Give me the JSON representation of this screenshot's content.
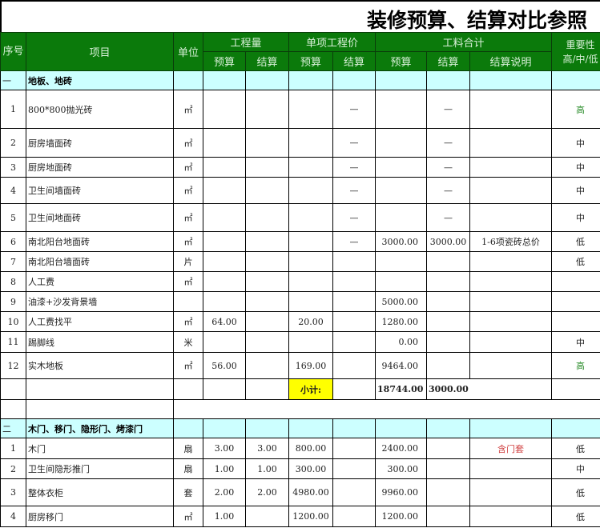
{
  "title": "装修预算、结算对比参照",
  "header": {
    "seq": "序号",
    "item": "项目",
    "unit": "单位",
    "qty": "工程量",
    "unit_price": "单项工程价",
    "total": "工料合计",
    "importance": "重要性",
    "importance_sub": "高/中/低",
    "budget": "预算",
    "settle": "结算",
    "settle_note": "结算说明"
  },
  "sections": [
    {
      "no": "一",
      "name": "地板、地砖",
      "rows": [
        {
          "no": "1",
          "item": "800*800抛光砖",
          "unit": "㎡",
          "qb": "",
          "qs": "",
          "pb": "",
          "ps": "—",
          "tb": "",
          "ts": "—",
          "note": "",
          "imp": "高"
        },
        {
          "no": "2",
          "item": "厨房墙面砖",
          "unit": "㎡",
          "qb": "",
          "qs": "",
          "pb": "",
          "ps": "—",
          "tb": "",
          "ts": "—",
          "note": "",
          "imp": "中"
        },
        {
          "no": "3",
          "item": "厨房地面砖",
          "unit": "㎡",
          "qb": "",
          "qs": "",
          "pb": "",
          "ps": "—",
          "tb": "",
          "ts": "—",
          "note": "",
          "imp": "中"
        },
        {
          "no": "4",
          "item": "卫生间墙面砖",
          "unit": "㎡",
          "qb": "",
          "qs": "",
          "pb": "",
          "ps": "—",
          "tb": "",
          "ts": "—",
          "note": "",
          "imp": "中"
        },
        {
          "no": "5",
          "item": "卫生间地面砖",
          "unit": "㎡",
          "qb": "",
          "qs": "",
          "pb": "",
          "ps": "—",
          "tb": "",
          "ts": "—",
          "note": "",
          "imp": "中"
        },
        {
          "no": "6",
          "item": "南北阳台地面砖",
          "unit": "㎡",
          "qb": "",
          "qs": "",
          "pb": "",
          "ps": "—",
          "tb": "3000.00",
          "ts": "3000.00",
          "note": "1-6项瓷砖总价",
          "imp": "低"
        },
        {
          "no": "7",
          "item": "南北阳台墙面砖",
          "unit": "片",
          "qb": "",
          "qs": "",
          "pb": "",
          "ps": "",
          "tb": "",
          "ts": "",
          "note": "",
          "imp": "低"
        },
        {
          "no": "8",
          "item": "人工费",
          "unit": "㎡",
          "qb": "",
          "qs": "",
          "pb": "",
          "ps": "",
          "tb": "",
          "ts": "",
          "note": "",
          "imp": ""
        },
        {
          "no": "9",
          "item": "油漆+沙发背景墙",
          "unit": "",
          "qb": "",
          "qs": "",
          "pb": "",
          "ps": "",
          "tb": "5000.00",
          "ts": "",
          "note": "",
          "imp": ""
        },
        {
          "no": "10",
          "item": "人工费找平",
          "unit": "㎡",
          "qb": "64.00",
          "qs": "",
          "pb": "20.00",
          "ps": "",
          "tb": "1280.00",
          "ts": "",
          "note": "",
          "imp": ""
        },
        {
          "no": "11",
          "item": "踢脚线",
          "unit": "米",
          "qb": "",
          "qs": "",
          "pb": "",
          "ps": "",
          "tb": "0.00",
          "ts": "",
          "note": "",
          "imp": "中"
        },
        {
          "no": "12",
          "item": "实木地板",
          "unit": "㎡",
          "qb": "56.00",
          "qs": "",
          "pb": "169.00",
          "ps": "",
          "tb": "9464.00",
          "ts": "",
          "note": "",
          "imp": "高"
        }
      ],
      "subtotal": {
        "label": "小计:",
        "budget": "18744.00",
        "settle": "3000.00"
      }
    },
    {
      "no": "二",
      "name": "木门、移门、隐形门、烤漆门",
      "rows": [
        {
          "no": "1",
          "item": "木门",
          "unit": "扇",
          "qb": "3.00",
          "qs": "3.00",
          "pb": "800.00",
          "ps": "",
          "tb": "2400.00",
          "ts": "",
          "note": "含门套",
          "imp": "低"
        },
        {
          "no": "2",
          "item": "卫生间隐形推门",
          "unit": "扇",
          "qb": "1.00",
          "qs": "1.00",
          "pb": "300.00",
          "ps": "",
          "tb": "300.00",
          "ts": "",
          "note": "",
          "imp": "中"
        },
        {
          "no": "3",
          "item": "整体衣柜",
          "unit": "套",
          "qb": "2.00",
          "qs": "2.00",
          "pb": "4980.00",
          "ps": "",
          "tb": "9960.00",
          "ts": "",
          "note": "",
          "imp": "低"
        },
        {
          "no": "4",
          "item": "厨房移门",
          "unit": "㎡",
          "qb": "1.00",
          "qs": "",
          "pb": "1200.00",
          "ps": "",
          "tb": "1200.00",
          "ts": "",
          "note": "",
          "imp": "低"
        }
      ]
    }
  ],
  "colors": {
    "header_bg": "#0b7a0b",
    "section_bg": "#ccffff",
    "subtotal_bg": "#ffff00",
    "high": "#2f8f2f",
    "note_red": "#d04040"
  }
}
